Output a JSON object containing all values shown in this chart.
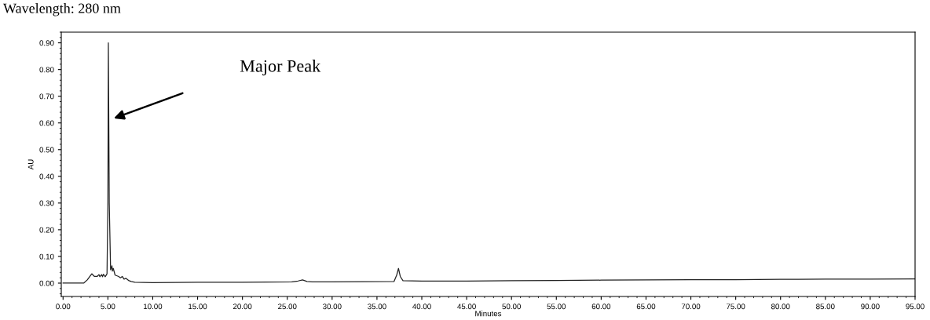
{
  "chart_data": {
    "type": "line",
    "title": "Wavelength: 280 nm",
    "xlabel": "Minutes",
    "ylabel": "AU",
    "x": [
      0,
      2.3,
      2.7,
      3.2,
      3.5,
      3.8,
      4.0,
      4.1,
      4.3,
      4.4,
      4.5,
      4.7,
      4.9,
      5.0,
      5.05,
      5.15,
      5.3,
      5.45,
      5.5,
      5.6,
      5.8,
      6.2,
      6.4,
      6.6,
      6.8,
      7.0,
      7.3,
      7.6,
      8.0,
      10.0,
      15.0,
      20.0,
      25.5,
      26.2,
      26.7,
      27.2,
      27.8,
      30.0,
      36.9,
      37.2,
      37.4,
      37.6,
      37.9,
      40.0,
      45.0,
      50.0,
      55.0,
      60.0,
      65.0,
      70.0,
      75.0,
      80.0,
      85.0,
      90.0,
      95.0
    ],
    "series": [
      {
        "color": "#222222",
        "values": [
          0,
          0,
          0.012,
          0.035,
          0.025,
          0.025,
          0.032,
          0.024,
          0.032,
          0.024,
          0.033,
          0.024,
          0.035,
          0.3,
          0.9,
          0.3,
          0.05,
          0.065,
          0.045,
          0.055,
          0.03,
          0.025,
          0.02,
          0.025,
          0.015,
          0.018,
          0.01,
          0.006,
          0.003,
          0.002,
          0.003,
          0.003,
          0.005,
          0.008,
          0.012,
          0.006,
          0.005,
          0.005,
          0.006,
          0.03,
          0.055,
          0.025,
          0.009,
          0.008,
          0.008,
          0.009,
          0.01,
          0.011,
          0.012,
          0.013,
          0.013,
          0.014,
          0.015,
          0.015,
          0.016
        ]
      }
    ],
    "xlim": [
      -0.2,
      95
    ],
    "ylim": [
      -0.05,
      0.94
    ],
    "xticks": [
      {
        "value": 0,
        "label": "0.00"
      },
      {
        "value": 5,
        "label": "5.00"
      },
      {
        "value": 10,
        "label": "10.00"
      },
      {
        "value": 15,
        "label": "15.00"
      },
      {
        "value": 20,
        "label": "20.00"
      },
      {
        "value": 25,
        "label": "25.00"
      },
      {
        "value": 30,
        "label": "30.00"
      },
      {
        "value": 35,
        "label": "35.00"
      },
      {
        "value": 40,
        "label": "40.00"
      },
      {
        "value": 45,
        "label": "45.00"
      },
      {
        "value": 50,
        "label": "50.00"
      },
      {
        "value": 55,
        "label": "55.00"
      },
      {
        "value": 60,
        "label": "60.00"
      },
      {
        "value": 65,
        "label": "65.00"
      },
      {
        "value": 70,
        "label": "70.00"
      },
      {
        "value": 75,
        "label": "75.00"
      },
      {
        "value": 80,
        "label": "80.00"
      },
      {
        "value": 85,
        "label": "85.00"
      },
      {
        "value": 90,
        "label": "90.00"
      },
      {
        "value": 95,
        "label": "95.00"
      }
    ],
    "yticks": [
      {
        "value": 0,
        "label": "0.00"
      },
      {
        "value": 0.1,
        "label": "0.10"
      },
      {
        "value": 0.2,
        "label": "0.20"
      },
      {
        "value": 0.3,
        "label": "0.30"
      },
      {
        "value": 0.4,
        "label": "0.40"
      },
      {
        "value": 0.5,
        "label": "0.50"
      },
      {
        "value": 0.6,
        "label": "0.60"
      },
      {
        "value": 0.7,
        "label": "0.70"
      },
      {
        "value": 0.8,
        "label": "0.80"
      },
      {
        "value": 0.9,
        "label": "0.90"
      }
    ],
    "annotations": [
      "Major Peak"
    ],
    "grid": false,
    "legend": false,
    "marker": "none",
    "line_style": "solid"
  }
}
